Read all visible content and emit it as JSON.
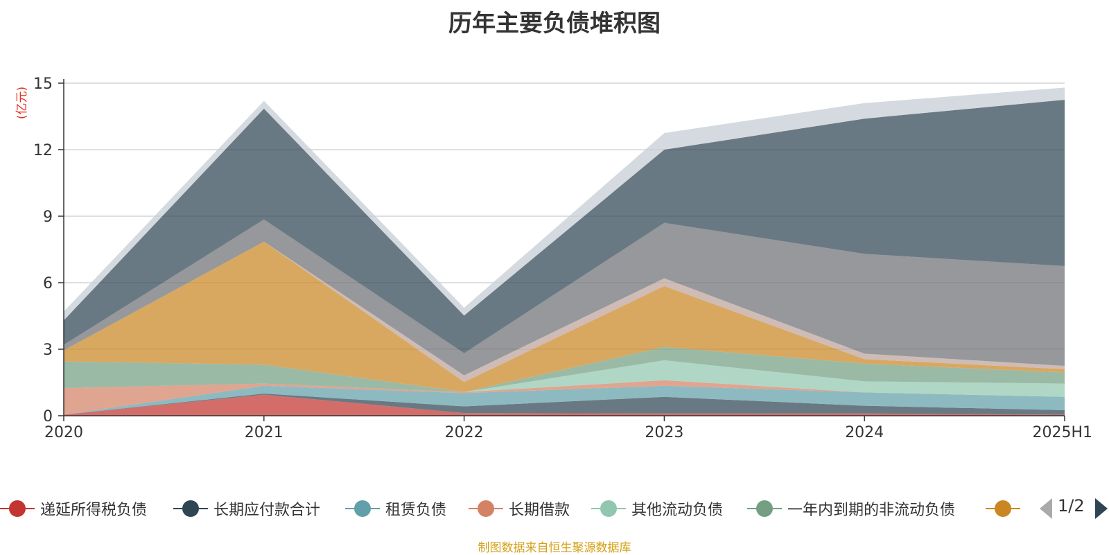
{
  "chart_data": {
    "type": "area",
    "stacked": true,
    "title": "历年主要负债堆积图",
    "ylabel": "(亿元)",
    "x": [
      "2020",
      "2021",
      "2022",
      "2023",
      "2024",
      "2025H1"
    ],
    "ylim": [
      0,
      15
    ],
    "yticks": [
      0,
      3,
      6,
      9,
      12,
      15
    ],
    "grid": true,
    "legend_position": "bottom",
    "series": [
      {
        "name": "递延所得税负债",
        "color": "#c23531",
        "values": [
          0.05,
          0.95,
          0.12,
          0.1,
          0.1,
          0.05
        ]
      },
      {
        "name": "长期应付款合计",
        "color": "#2f4554",
        "values": [
          0.0,
          0.05,
          0.3,
          0.75,
          0.35,
          0.2
        ]
      },
      {
        "name": "租赁负债",
        "color": "#61a0a8",
        "values": [
          0.0,
          0.35,
          0.6,
          0.5,
          0.6,
          0.6
        ]
      },
      {
        "name": "长期借款",
        "color": "#d48265",
        "values": [
          1.2,
          0.1,
          0.05,
          0.25,
          0.0,
          0.0
        ]
      },
      {
        "name": "其他流动负债",
        "color": "#91c7ae",
        "values": [
          0.0,
          0.0,
          0.0,
          0.9,
          0.5,
          0.6
        ]
      },
      {
        "name": "一年内到期的非流动负债",
        "color": "#749f83",
        "values": [
          1.2,
          0.85,
          0.0,
          0.6,
          0.8,
          0.5
        ]
      },
      {
        "name": "",
        "color": "#ca8622",
        "values": [
          0.5,
          5.55,
          0.45,
          2.75,
          0.2,
          0.15
        ]
      },
      {
        "name": "",
        "color": "#bda29a",
        "values": [
          0.0,
          0.0,
          0.3,
          0.35,
          0.25,
          0.15
        ]
      },
      {
        "name": "",
        "color": "#6e7074",
        "values": [
          0.25,
          1.0,
          1.0,
          2.5,
          4.5,
          4.5
        ]
      },
      {
        "name": "",
        "color": "#2f4554",
        "values": [
          1.1,
          5.0,
          1.7,
          3.3,
          6.1,
          7.5
        ]
      },
      {
        "name": "",
        "color": "#c4ccd3",
        "values": [
          0.4,
          0.35,
          0.35,
          0.75,
          0.7,
          0.55
        ]
      }
    ]
  },
  "legend": {
    "items": [
      {
        "label": "递延所得税负债",
        "color": "#c23531"
      },
      {
        "label": "长期应付款合计",
        "color": "#2f4554"
      },
      {
        "label": "租赁负债",
        "color": "#61a0a8"
      },
      {
        "label": "长期借款",
        "color": "#d48265"
      },
      {
        "label": "其他流动负债",
        "color": "#91c7ae"
      },
      {
        "label": "一年内到期的非流动负债",
        "color": "#749f83"
      },
      {
        "label": "",
        "color": "#ca8622"
      }
    ],
    "page": "1/2"
  },
  "source_note": "制图数据来自恒生聚源数据库"
}
